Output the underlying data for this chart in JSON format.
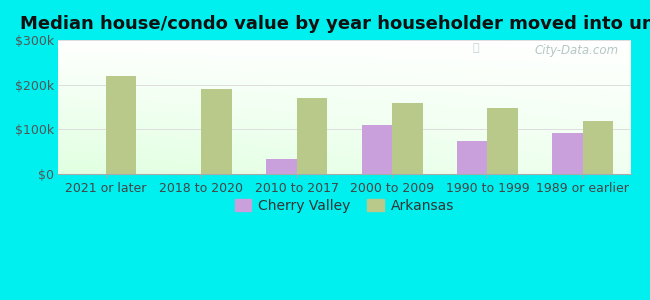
{
  "categories": [
    "2021 or later",
    "2018 to 2020",
    "2010 to 2017",
    "2000 to 2009",
    "1990 to 1999",
    "1989 or earlier"
  ],
  "cherry_valley": [
    0,
    0,
    35000,
    110000,
    75000,
    92000
  ],
  "arkansas": [
    220000,
    190000,
    170000,
    160000,
    147000,
    120000
  ],
  "cherry_valley_color": "#c9a0dc",
  "arkansas_color": "#b8c98a",
  "title": "Median house/condo value by year householder moved into unit",
  "ylim": [
    0,
    300000
  ],
  "ytick_labels": [
    "$0",
    "$100k",
    "$200k",
    "$300k"
  ],
  "ytick_values": [
    0,
    100000,
    200000,
    300000
  ],
  "outer_bg": "#00f0f0",
  "bar_width": 0.32,
  "legend_labels": [
    "Cherry Valley",
    "Arkansas"
  ],
  "watermark": "City-Data.com",
  "title_fontsize": 13,
  "tick_fontsize": 9,
  "legend_fontsize": 10
}
